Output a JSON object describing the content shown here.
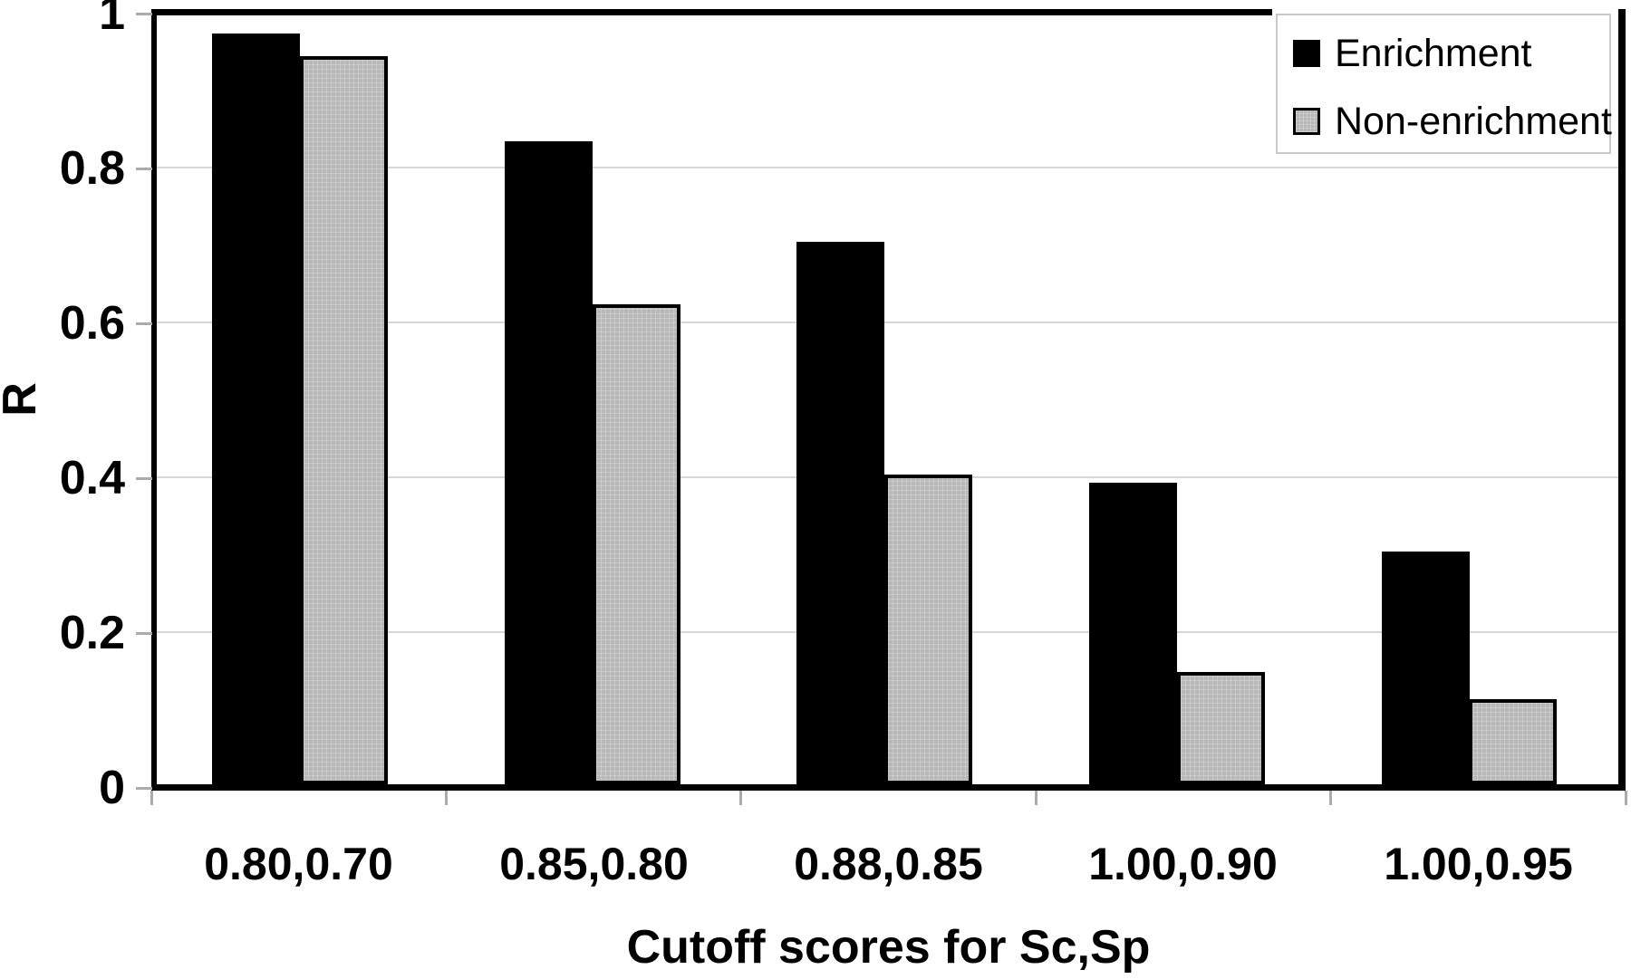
{
  "chart_data": {
    "type": "bar",
    "title": "",
    "xlabel": "Cutoff scores for Sc,Sp",
    "ylabel": "R",
    "categories": [
      "0.80,0.70",
      "0.85,0.80",
      "0.88,0.85",
      "1.00,0.90",
      "1.00,0.95"
    ],
    "series": [
      {
        "name": "Enrichment",
        "color": "#000000",
        "values": [
          0.97,
          0.83,
          0.7,
          0.39,
          0.3
        ]
      },
      {
        "name": "Non-enrichment",
        "color": "#b8b8b8",
        "values": [
          0.94,
          0.62,
          0.4,
          0.145,
          0.11
        ]
      }
    ],
    "ylim": [
      0,
      1
    ],
    "yticks": [
      0,
      0.2,
      0.4,
      0.6,
      0.8,
      1
    ],
    "ytick_labels": [
      "0",
      "0.2",
      "0.4",
      "0.6",
      "0.8",
      "1"
    ],
    "grid": true,
    "gridline_values": [
      0.2,
      0.4,
      0.6,
      0.8
    ],
    "legend_position": "top-right",
    "frame_color": "#000000",
    "gridline_color": "#d6d6d6",
    "tick_color": "#ababab",
    "background_color": "#ffffff"
  }
}
